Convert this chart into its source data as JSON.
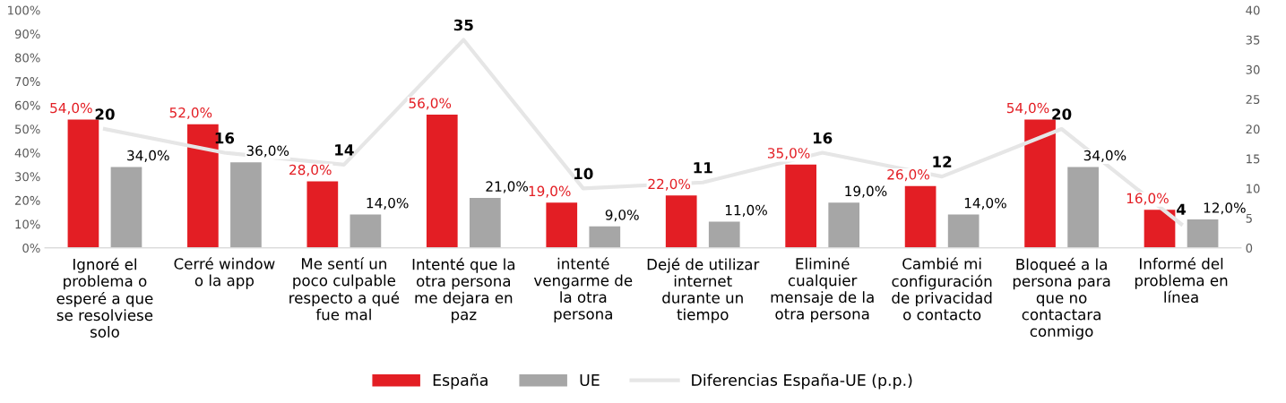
{
  "chart_data": {
    "type": "bar",
    "categories": [
      "Ignoré el\nproblema o\nesperé a que\nse resolviese\nsolo",
      "Cerré window\no la app",
      "Me sentí un\npoco culpable\nrespecto a qué\nfue mal",
      "Intenté que la\notra persona\nme dejara en\npaz",
      "intenté\nvengarme de\nla otra\npersona",
      "Dejé de utilizar\ninternet\ndurante un\ntiempo",
      "Eliminé\ncualquier\nmensaje de la\notra persona",
      "Cambié mi\nconfiguración\nde privacidad\no contacto",
      "Bloqueé a la\npersona para\nque no\ncontactara\nconmigo",
      "Informé del\nproblema en\nlínea"
    ],
    "series": [
      {
        "name": "España",
        "color": "#e31e24",
        "values": [
          54,
          52,
          28,
          56,
          19,
          22,
          35,
          26,
          54,
          16
        ],
        "value_labels": [
          "54,0%",
          "52,0%",
          "28,0%",
          "56,0%",
          "19,0%",
          "22,0%",
          "35,0%",
          "26,0%",
          "54,0%",
          "16,0%"
        ]
      },
      {
        "name": "UE",
        "color": "#a6a6a6",
        "values": [
          34,
          36,
          14,
          21,
          9,
          11,
          19,
          14,
          34,
          12
        ],
        "value_labels": [
          "34,0%",
          "36,0%",
          "14,0%",
          "21,0%",
          "9,0%",
          "11,0%",
          "19,0%",
          "14,0%",
          "34,0%",
          "12,0%"
        ]
      },
      {
        "name": "Diferencias España-UE (p.p.)",
        "type": "line",
        "axis": "y2",
        "color": "#e6e6e6",
        "values": [
          20,
          16,
          14,
          35,
          10,
          11,
          16,
          12,
          20,
          4
        ],
        "value_labels": [
          "20",
          "16",
          "14",
          "35",
          "10",
          "11",
          "16",
          "12",
          "20",
          "4"
        ]
      }
    ],
    "ylim": [
      0,
      100
    ],
    "yticks": [
      {
        "value": 0,
        "label": "0%"
      },
      {
        "value": 10,
        "label": "10%"
      },
      {
        "value": 20,
        "label": "20%"
      },
      {
        "value": 30,
        "label": "30%"
      },
      {
        "value": 40,
        "label": "40%"
      },
      {
        "value": 50,
        "label": "50%"
      },
      {
        "value": 60,
        "label": "60%"
      },
      {
        "value": 70,
        "label": "70%"
      },
      {
        "value": 80,
        "label": "80%"
      },
      {
        "value": 90,
        "label": "90%"
      },
      {
        "value": 100,
        "label": "100%"
      }
    ],
    "y2lim": [
      0,
      40
    ],
    "y2ticks": [
      0,
      5,
      10,
      15,
      20,
      25,
      30,
      35,
      40
    ],
    "grid": false,
    "legend": "bottom",
    "marker": "none",
    "line_style": "solid"
  }
}
